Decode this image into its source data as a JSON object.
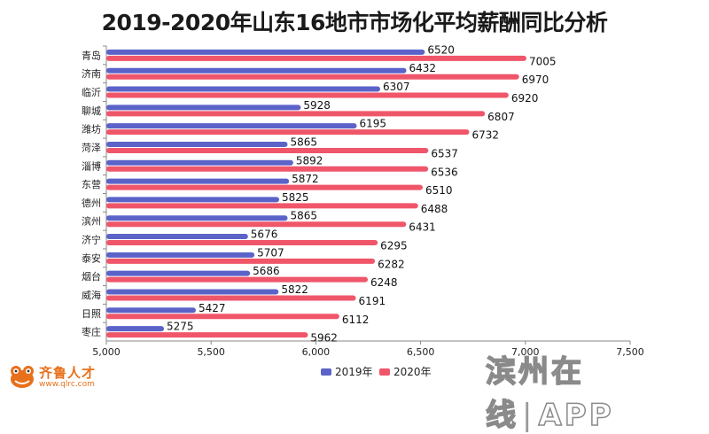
{
  "chart_data": {
    "type": "bar",
    "orientation": "horizontal",
    "title": "2019-2020年山东16地市市场化平均薪酬同比分析",
    "categories": [
      "青岛",
      "济南",
      "临沂",
      "聊城",
      "潍坊",
      "菏泽",
      "淄博",
      "东营",
      "德州",
      "滨州",
      "济宁",
      "泰安",
      "烟台",
      "威海",
      "日照",
      "枣庄"
    ],
    "series": [
      {
        "name": "2019年",
        "color": "#5b63c9",
        "values": [
          6520,
          6432,
          6307,
          5928,
          6195,
          5865,
          5892,
          5872,
          5825,
          5865,
          5676,
          5707,
          5686,
          5822,
          5427,
          5275
        ]
      },
      {
        "name": "2020年",
        "color": "#f0566a",
        "values": [
          7005,
          6970,
          6920,
          6807,
          6732,
          6537,
          6536,
          6510,
          6488,
          6431,
          6295,
          6282,
          6248,
          6191,
          6112,
          5962
        ]
      }
    ],
    "xlim": [
      5000,
      7500
    ],
    "xticks": [
      5000,
      5500,
      6000,
      6500,
      7000,
      7500
    ],
    "xtick_labels": [
      "5,000",
      "5,500",
      "6,000",
      "6,500",
      "7,000",
      "7,500"
    ],
    "xlabel": "",
    "ylabel": "",
    "legend_position": "bottom-center"
  },
  "branding": {
    "logo_text": "齐鲁人才",
    "logo_sub": "www.qlrc.com",
    "watermark_left": "滨州在线",
    "watermark_sep": "|",
    "watermark_right": "APP"
  }
}
